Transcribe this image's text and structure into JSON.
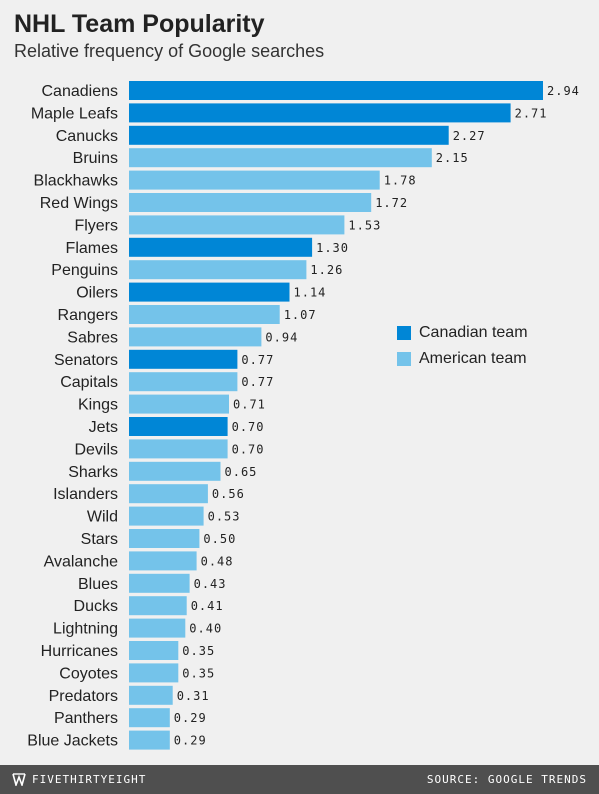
{
  "header": {
    "title": "NHL Team Popularity",
    "subtitle": "Relative frequency of Google searches"
  },
  "legend": {
    "canadian_label": "Canadian team",
    "american_label": "American team"
  },
  "footer": {
    "brand": "FIVETHIRTYEIGHT",
    "brand_icon": "fivethirtyeight-logo-icon",
    "source": "SOURCE: GOOGLE TRENDS"
  },
  "colors": {
    "canadian": "#0086d6",
    "american": "#74c3ea",
    "background": "#f0f0f0",
    "footer": "#4f4f4f"
  },
  "chart_data": {
    "type": "bar",
    "orientation": "horizontal",
    "title": "NHL Team Popularity",
    "subtitle": "Relative frequency of Google searches",
    "xlim": [
      0,
      2.94
    ],
    "grid": false,
    "legend_position": "middle-right",
    "categories": [
      "Canadiens",
      "Maple Leafs",
      "Canucks",
      "Bruins",
      "Blackhawks",
      "Red Wings",
      "Flyers",
      "Flames",
      "Penguins",
      "Oilers",
      "Rangers",
      "Sabres",
      "Senators",
      "Capitals",
      "Kings",
      "Jets",
      "Devils",
      "Sharks",
      "Islanders",
      "Wild",
      "Stars",
      "Avalanche",
      "Blues",
      "Ducks",
      "Lightning",
      "Hurricanes",
      "Coyotes",
      "Predators",
      "Panthers",
      "Blue Jackets"
    ],
    "values": [
      2.94,
      2.71,
      2.27,
      2.15,
      1.78,
      1.72,
      1.53,
      1.3,
      1.26,
      1.14,
      1.07,
      0.94,
      0.77,
      0.77,
      0.71,
      0.7,
      0.7,
      0.65,
      0.56,
      0.53,
      0.5,
      0.48,
      0.43,
      0.41,
      0.4,
      0.35,
      0.35,
      0.31,
      0.29,
      0.29
    ],
    "value_labels": [
      "2.94",
      "2.71",
      "2.27",
      "2.15",
      "1.78",
      "1.72",
      "1.53",
      "1.30",
      "1.26",
      "1.14",
      "1.07",
      "0.94",
      "0.77",
      "0.77",
      "0.71",
      "0.70",
      "0.70",
      "0.65",
      "0.56",
      "0.53",
      "0.50",
      "0.48",
      "0.43",
      "0.41",
      "0.40",
      "0.35",
      "0.35",
      "0.31",
      "0.29",
      "0.29"
    ],
    "groups": [
      "Canadian team",
      "Canadian team",
      "Canadian team",
      "American team",
      "American team",
      "American team",
      "American team",
      "Canadian team",
      "American team",
      "Canadian team",
      "American team",
      "American team",
      "Canadian team",
      "American team",
      "American team",
      "Canadian team",
      "American team",
      "American team",
      "American team",
      "American team",
      "American team",
      "American team",
      "American team",
      "American team",
      "American team",
      "American team",
      "American team",
      "American team",
      "American team",
      "American team"
    ]
  }
}
